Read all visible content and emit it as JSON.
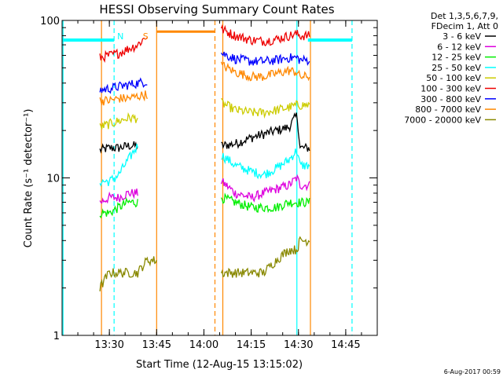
{
  "chart_data": {
    "type": "line",
    "title": "HESSI Observing Summary Count Rates",
    "xlabel": "Start Time (12-Aug-15 13:15:02)",
    "ylabel": "Count Rate (s⁻¹ detector⁻¹)",
    "x_unit": "minutes after 13:15:02",
    "xlim": [
      0,
      100
    ],
    "ylim": [
      1,
      100
    ],
    "y_scale": "log",
    "grid": false,
    "x_ticks": [
      {
        "value": 15,
        "label": "13:30"
      },
      {
        "value": 30,
        "label": "13:45"
      },
      {
        "value": 45,
        "label": "14:00"
      },
      {
        "value": 60,
        "label": "14:15"
      },
      {
        "value": 75,
        "label": "14:30"
      },
      {
        "value": 90,
        "label": "14:45"
      }
    ],
    "y_ticks": [
      {
        "value": 1,
        "label": "1"
      },
      {
        "value": 10,
        "label": "10"
      },
      {
        "value": 100,
        "label": "100"
      }
    ],
    "legend": {
      "placement": "right",
      "header": [
        "Det 1,3,5,6,7,9,",
        "FDecim 1, Att 0"
      ]
    },
    "series": [
      {
        "name": "3 - 6 keV",
        "color": "#000000",
        "segments": [
          {
            "x": [
              12,
              15,
              18,
              21,
              24
            ],
            "y": [
              15,
              15.5,
              15.5,
              16,
              16
            ]
          },
          {
            "x": [
              50.5,
              55,
              60,
              64,
              68,
              72,
              74.5,
              75.5,
              78.5
            ],
            "y": [
              16,
              16.5,
              18,
              19,
              20,
              21,
              25,
              15.5,
              15.5
            ]
          }
        ]
      },
      {
        "name": "6 - 12 keV",
        "color": "#dd00dd",
        "segments": [
          {
            "x": [
              12,
              15,
              18,
              21,
              24
            ],
            "y": [
              7,
              7.5,
              7.5,
              8,
              8
            ]
          },
          {
            "x": [
              50.5,
              55,
              60,
              64,
              68,
              72,
              74.5,
              75.5,
              78.5
            ],
            "y": [
              9.5,
              8,
              7.5,
              8,
              8.5,
              9,
              10,
              9,
              9
            ]
          }
        ]
      },
      {
        "name": "12 - 25 keV",
        "color": "#00ee00",
        "segments": [
          {
            "x": [
              12,
              15,
              18,
              21,
              24
            ],
            "y": [
              6,
              6,
              6.5,
              7,
              7
            ]
          },
          {
            "x": [
              50.5,
              55,
              60,
              64,
              68,
              72,
              74.5,
              75.5,
              78.5
            ],
            "y": [
              7.5,
              7,
              6.5,
              6.5,
              6.5,
              7,
              7,
              7,
              7
            ]
          }
        ]
      },
      {
        "name": "25 - 50 keV",
        "color": "#00ffff",
        "segments": [
          {
            "x": [
              12,
              15,
              18,
              21,
              24
            ],
            "y": [
              9.5,
              9.5,
              10.5,
              13,
              16
            ]
          },
          {
            "x": [
              50.5,
              55,
              60,
              64,
              68,
              72,
              74.5,
              75.5,
              78.5
            ],
            "y": [
              14,
              12,
              11,
              10.5,
              11.5,
              13,
              15,
              12,
              12
            ]
          }
        ]
      },
      {
        "name": "50 - 100 keV",
        "color": "#cccc00",
        "segments": [
          {
            "x": [
              12,
              15,
              18,
              21,
              24
            ],
            "y": [
              21,
              22,
              23,
              24,
              24
            ]
          },
          {
            "x": [
              50.5,
              55,
              60,
              64,
              68,
              72,
              74.5,
              75.5,
              78.5
            ],
            "y": [
              30,
              27,
              26,
              26,
              27,
              28,
              29,
              29,
              29
            ]
          }
        ]
      },
      {
        "name": "100 - 300 keV",
        "color": "#ee0000",
        "segments": [
          {
            "x": [
              12,
              15,
              18,
              21,
              24,
              27
            ],
            "y": [
              58,
              60,
              62,
              66,
              70,
              80
            ]
          },
          {
            "x": [
              50.5,
              55,
              60,
              64,
              68,
              72,
              74.5,
              75.5,
              78.5
            ],
            "y": [
              88,
              80,
              75,
              74,
              76,
              80,
              82,
              80,
              80
            ]
          }
        ]
      },
      {
        "name": "300 - 800 keV",
        "color": "#0000ff",
        "segments": [
          {
            "x": [
              12,
              15,
              18,
              21,
              24,
              27
            ],
            "y": [
              36,
              37,
              38,
              39,
              40,
              41
            ]
          },
          {
            "x": [
              50.5,
              55,
              60,
              64,
              68,
              72,
              74.5,
              75.5,
              78.5
            ],
            "y": [
              62,
              57,
              55,
              55,
              56,
              58,
              58,
              56,
              56
            ]
          }
        ]
      },
      {
        "name": "800 - 7000 keV",
        "color": "#ff8800",
        "segments": [
          {
            "x": [
              12,
              15,
              18,
              21,
              24,
              27
            ],
            "y": [
              31,
              31,
              32,
              32,
              33,
              34
            ]
          },
          {
            "x": [
              50.5,
              55,
              60,
              64,
              68,
              72,
              74.5,
              75.5,
              78.5
            ],
            "y": [
              52,
              47,
              44,
              44,
              46,
              48,
              47,
              44,
              44
            ]
          },
          {
            "x": [
              30,
              48.5
            ],
            "y": [
              85,
              85
            ]
          }
        ]
      },
      {
        "name": "7000 - 20000 keV",
        "color": "#888800",
        "segments": [
          {
            "x": [
              12,
              15,
              18,
              21,
              24,
              27,
              30
            ],
            "y": [
              2,
              2.5,
              2.5,
              2.5,
              2.5,
              3,
              3
            ]
          },
          {
            "x": [
              50.5,
              55,
              60,
              64,
              68,
              72,
              74.5,
              75.5,
              78.5
            ],
            "y": [
              2.5,
              2.5,
              2.5,
              2.5,
              3,
              3.5,
              3.5,
              4,
              4
            ]
          }
        ]
      }
    ],
    "attenuator_band": {
      "color": "#00ffff",
      "y": 75,
      "segments": [
        [
          0,
          16.5
        ],
        [
          78,
          92
        ]
      ]
    },
    "annotations": [
      {
        "text": "N",
        "x": 18.5,
        "color": "#00ffff"
      },
      {
        "text": "S",
        "x": 26.5,
        "color": "#ff8800"
      }
    ],
    "markers": [
      {
        "x": 0.3,
        "style": "solid",
        "color": "#00ffff"
      },
      {
        "x": 16.5,
        "style": "dashed",
        "color": "#00ffff"
      },
      {
        "x": 12.5,
        "style": "solid",
        "color": "#ff8800"
      },
      {
        "x": 30,
        "style": "solid",
        "color": "#ff8800"
      },
      {
        "x": 48.5,
        "style": "dashed",
        "color": "#ff8800"
      },
      {
        "x": 51,
        "style": "solid",
        "color": "#ff8800"
      },
      {
        "x": 74.5,
        "style": "solid",
        "color": "#00ffff"
      },
      {
        "x": 78.8,
        "style": "solid",
        "color": "#ff8800"
      },
      {
        "x": 92,
        "style": "dashed",
        "color": "#00ffff"
      }
    ],
    "footer": "6-Aug-2017 00:59"
  }
}
